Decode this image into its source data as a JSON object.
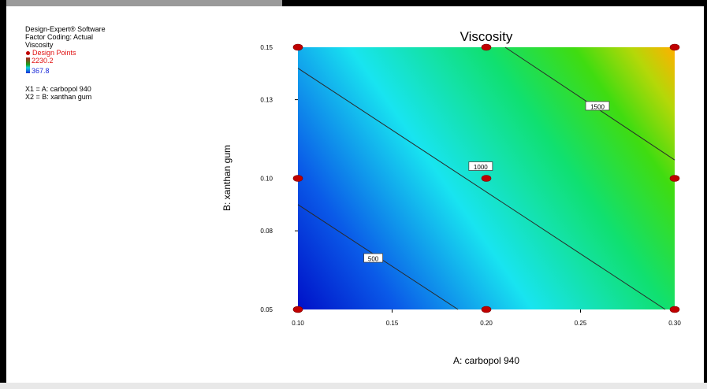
{
  "info_panel": {
    "software": "Design-Expert® Software",
    "factor_coding": "Factor Coding: Actual",
    "response": "Viscosity",
    "design_points_label": "Design Points",
    "scale_high": "2230.2",
    "scale_low": "367.8",
    "x1": "X1 = A: carbopol 940",
    "x2": "X2 = B: xanthan gum"
  },
  "colors": {
    "design_point": "#c00000",
    "contour": "#2a2a2a",
    "scale_high": "#e01010",
    "scale_low": "#1a2ad8"
  },
  "chart_data": {
    "type": "contour",
    "title": "Viscosity",
    "xlabel": "A: carbopol 940",
    "ylabel": "B: xanthan gum",
    "xlim": [
      0.1,
      0.3
    ],
    "ylim": [
      0.05,
      0.15
    ],
    "x_ticks": [
      "0.10",
      "0.15",
      "0.20",
      "0.25",
      "0.30"
    ],
    "y_ticks": [
      "0.05",
      "0.08",
      "0.10",
      "0.13",
      "0.15"
    ],
    "color_range": [
      367.8,
      2230.2
    ],
    "contours": [
      {
        "level": 500,
        "label": "500",
        "line": [
          [
            0.1,
            0.09
          ],
          [
            0.185,
            0.05
          ]
        ],
        "label_at": [
          0.14,
          0.0695
        ]
      },
      {
        "level": 1000,
        "label": "1000",
        "line": [
          [
            0.1,
            0.142
          ],
          [
            0.295,
            0.05
          ]
        ],
        "label_at": [
          0.197,
          0.1045
        ]
      },
      {
        "level": 1500,
        "label": "1500",
        "line": [
          [
            0.21,
            0.15
          ],
          [
            0.3,
            0.107
          ]
        ],
        "label_at": [
          0.259,
          0.1275
        ]
      }
    ],
    "design_points": [
      [
        0.1,
        0.05
      ],
      [
        0.2,
        0.05
      ],
      [
        0.3,
        0.05
      ],
      [
        0.1,
        0.1
      ],
      [
        0.2,
        0.1
      ],
      [
        0.3,
        0.1
      ],
      [
        0.1,
        0.15
      ],
      [
        0.2,
        0.15
      ],
      [
        0.3,
        0.15
      ]
    ]
  }
}
